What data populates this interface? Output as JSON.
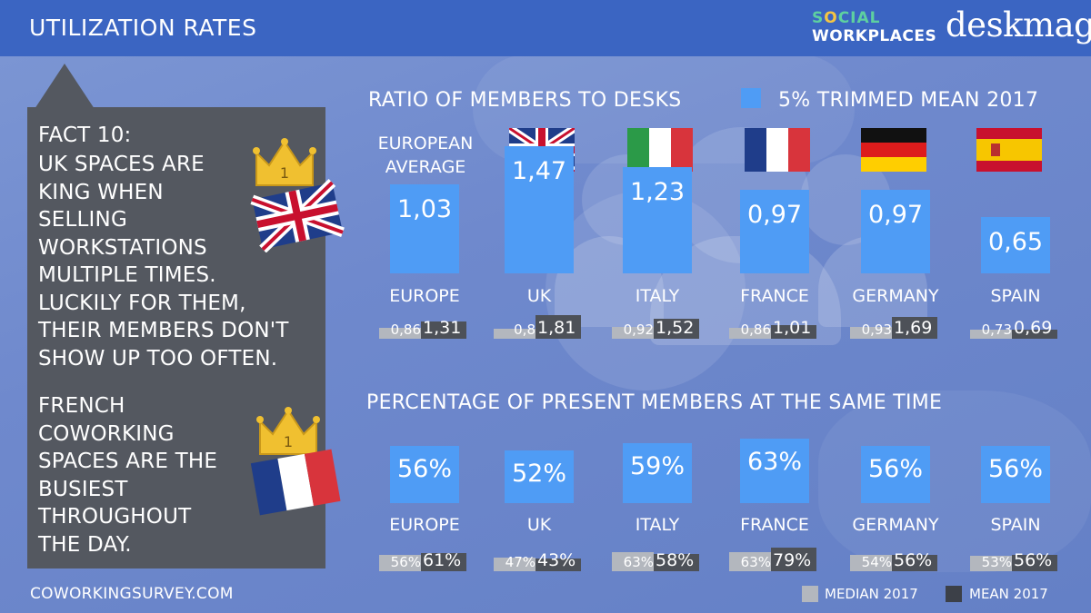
{
  "header": {
    "title": "UTILIZATION RATES",
    "logo_social_pre": "S",
    "logo_social_accent": "O",
    "logo_social_post": "CIAL",
    "logo_workplaces": "WORKPLACES",
    "logo_deskmag": "deskmag"
  },
  "fact": {
    "heading": "FACT 10:",
    "uk_lines": [
      "UK SPACES ARE",
      "KING WHEN",
      "SELLING",
      "WORKSTATIONS",
      "MULTIPLE TIMES.",
      "LUCKILY FOR THEM,",
      "THEIR MEMBERS DON'T",
      "SHOW UP TOO OFTEN."
    ],
    "fr_lines": [
      "FRENCH",
      "COWORKING",
      "SPACES ARE THE",
      "BUSIEST",
      "THROUGHOUT",
      "THE DAY."
    ],
    "crown_number": "1"
  },
  "footer": {
    "url": "COWORKINGSURVEY.COM",
    "legend_median": "MEDIAN 2017",
    "legend_mean": "MEAN 2017"
  },
  "colors": {
    "header": "#3b65c2",
    "bar": "#4f9cf5",
    "median": "#b3b7be",
    "mean": "#4d5158",
    "panel": "#545860"
  },
  "european_average_lines": [
    "EUROPEAN",
    "AVERAGE"
  ],
  "chart_data": [
    {
      "type": "bar",
      "title": "RATIO OF MEMBERS TO DESKS",
      "legend": "5% TRIMMED MEAN 2017",
      "categories": [
        "EUROPE",
        "UK",
        "ITALY",
        "FRANCE",
        "GERMANY",
        "SPAIN"
      ],
      "series": [
        {
          "name": "5% TRIMMED MEAN 2017",
          "values": [
            1.03,
            1.47,
            1.23,
            0.97,
            0.97,
            0.65
          ],
          "labels": [
            "1,03",
            "1,47",
            "1,23",
            "0,97",
            "0,97",
            "0,65"
          ]
        },
        {
          "name": "MEDIAN 2017",
          "values": [
            0.86,
            0.8,
            0.92,
            0.86,
            0.93,
            0.73
          ],
          "labels": [
            "0,86",
            "0,8",
            "0,92",
            "0,86",
            "0,93",
            "0,73"
          ]
        },
        {
          "name": "MEAN 2017",
          "values": [
            1.31,
            1.81,
            1.52,
            1.01,
            1.69,
            0.69
          ],
          "labels": [
            "1,31",
            "1,81",
            "1,52",
            "1,01",
            "1,69",
            "0,69"
          ]
        }
      ]
    },
    {
      "type": "bar",
      "title": "PERCENTAGE OF PRESENT MEMBERS AT THE SAME TIME",
      "categories": [
        "EUROPE",
        "UK",
        "ITALY",
        "FRANCE",
        "GERMANY",
        "SPAIN"
      ],
      "series": [
        {
          "name": "5% TRIMMED MEAN 2017",
          "values": [
            56,
            52,
            59,
            63,
            56,
            56
          ],
          "labels": [
            "56%",
            "52%",
            "59%",
            "63%",
            "56%",
            "56%"
          ]
        },
        {
          "name": "MEDIAN 2017",
          "values": [
            56,
            47,
            63,
            63,
            54,
            53
          ],
          "labels": [
            "56%",
            "47%",
            "63%",
            "63%",
            "54%",
            "53%"
          ]
        },
        {
          "name": "MEAN 2017",
          "values": [
            61,
            43,
            58,
            79,
            56,
            56
          ],
          "labels": [
            "61%",
            "43%",
            "58%",
            "79%",
            "56%",
            "56%"
          ]
        }
      ]
    }
  ]
}
